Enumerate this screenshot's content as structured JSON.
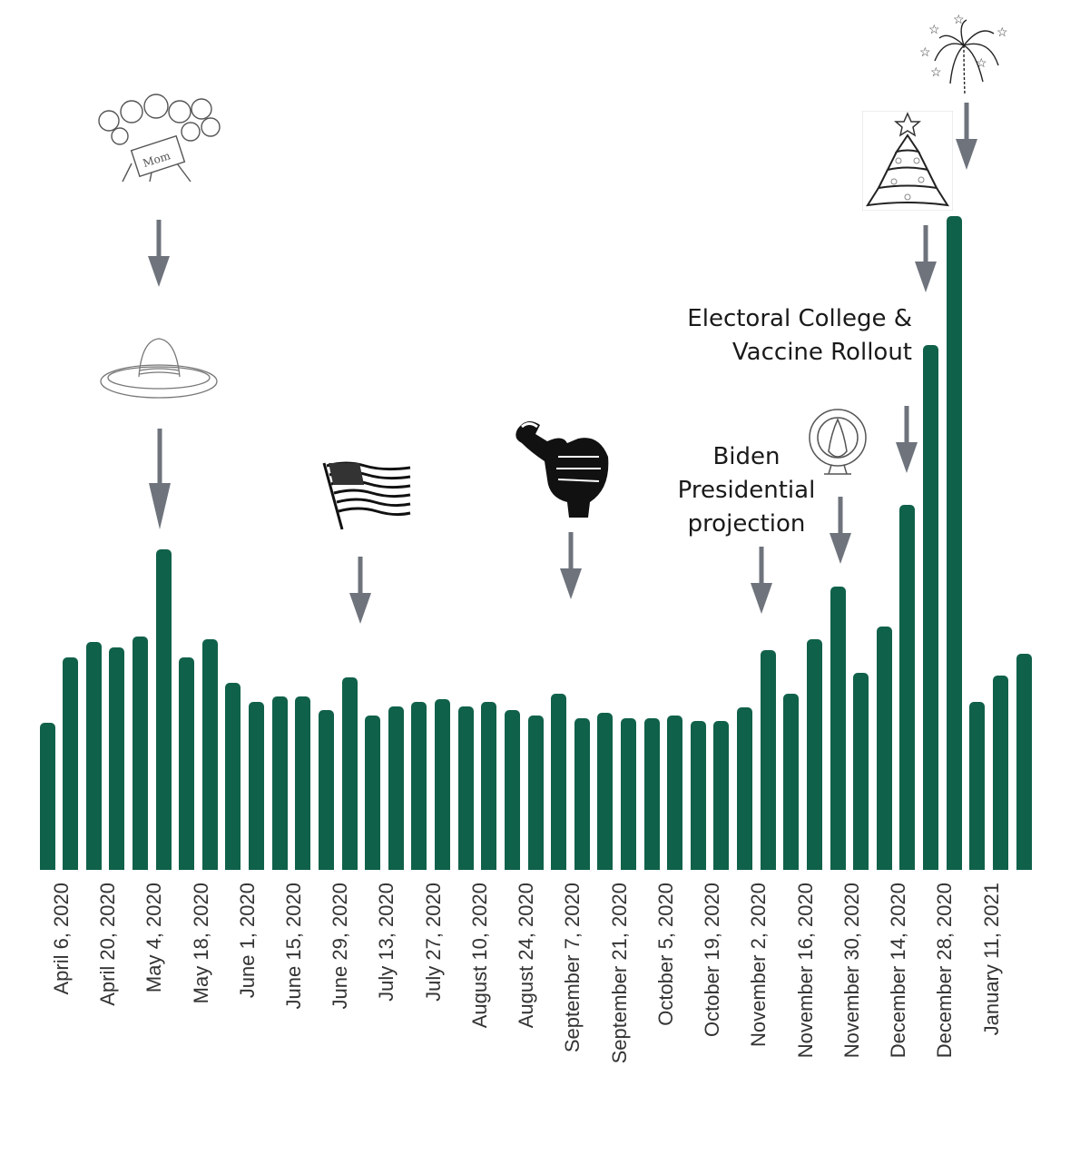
{
  "chart_data": {
    "type": "bar",
    "title": "",
    "xlabel": "",
    "ylabel": "",
    "grid": false,
    "legend": null,
    "bar_color": "#10614a",
    "arrow_color": "#6e737c",
    "tick_labels": [
      "April 6, 2020",
      "April 20, 2020",
      "May 4, 2020",
      "May 18, 2020",
      "June 1, 2020",
      "June 15, 2020",
      "June 29, 2020",
      "July 13, 2020",
      "July 27, 2020",
      "August 10, 2020",
      "August 24, 2020",
      "September 7, 2020",
      "September 21, 2020",
      "October 5, 2020",
      "October 19, 2020",
      "November 2, 2020",
      "November 16, 2020",
      "November 30, 2020",
      "December 14, 2020",
      "December 28, 2020",
      "January 11, 2021"
    ],
    "tick_every": 2,
    "values": [
      163,
      236,
      253,
      247,
      259,
      355,
      236,
      256,
      207,
      186,
      192,
      192,
      177,
      213,
      171,
      181,
      186,
      189,
      181,
      186,
      177,
      171,
      195,
      168,
      174,
      168,
      168,
      171,
      165,
      165,
      180,
      244,
      195,
      256,
      314,
      218,
      270,
      405,
      582,
      725,
      186,
      215,
      240
    ],
    "ylim": [
      0,
      730
    ],
    "annotations": [
      {
        "text": "Mother's Day",
        "icon": "flowers-mom-icon",
        "bar_index": 5
      },
      {
        "text": "Cinco de Mayo",
        "icon": "sombrero-icon",
        "bar_index": 5
      },
      {
        "text": "Independence Day",
        "icon": "us-flag-icon",
        "bar_index": 13
      },
      {
        "text": "Labor Day",
        "icon": "fist-wrench-icon",
        "bar_index": 22
      },
      {
        "text": "Biden Presidential projection",
        "icon": null,
        "bar_index": 31
      },
      {
        "text": "Thanksgiving",
        "icon": "turkey-icon",
        "bar_index": 34
      },
      {
        "text": "Electoral College & Vaccine Rollout",
        "icon": null,
        "bar_index": 37
      },
      {
        "text": "Christmas",
        "icon": "christmas-tree-icon",
        "bar_index": 38
      },
      {
        "text": "New Year",
        "icon": "fireworks-icon",
        "bar_index": 39
      }
    ]
  },
  "annotations_text": {
    "biden": [
      "Biden",
      "Presidential",
      "projection"
    ],
    "electoral": [
      "Electoral College &",
      "Vaccine Rollout"
    ]
  }
}
